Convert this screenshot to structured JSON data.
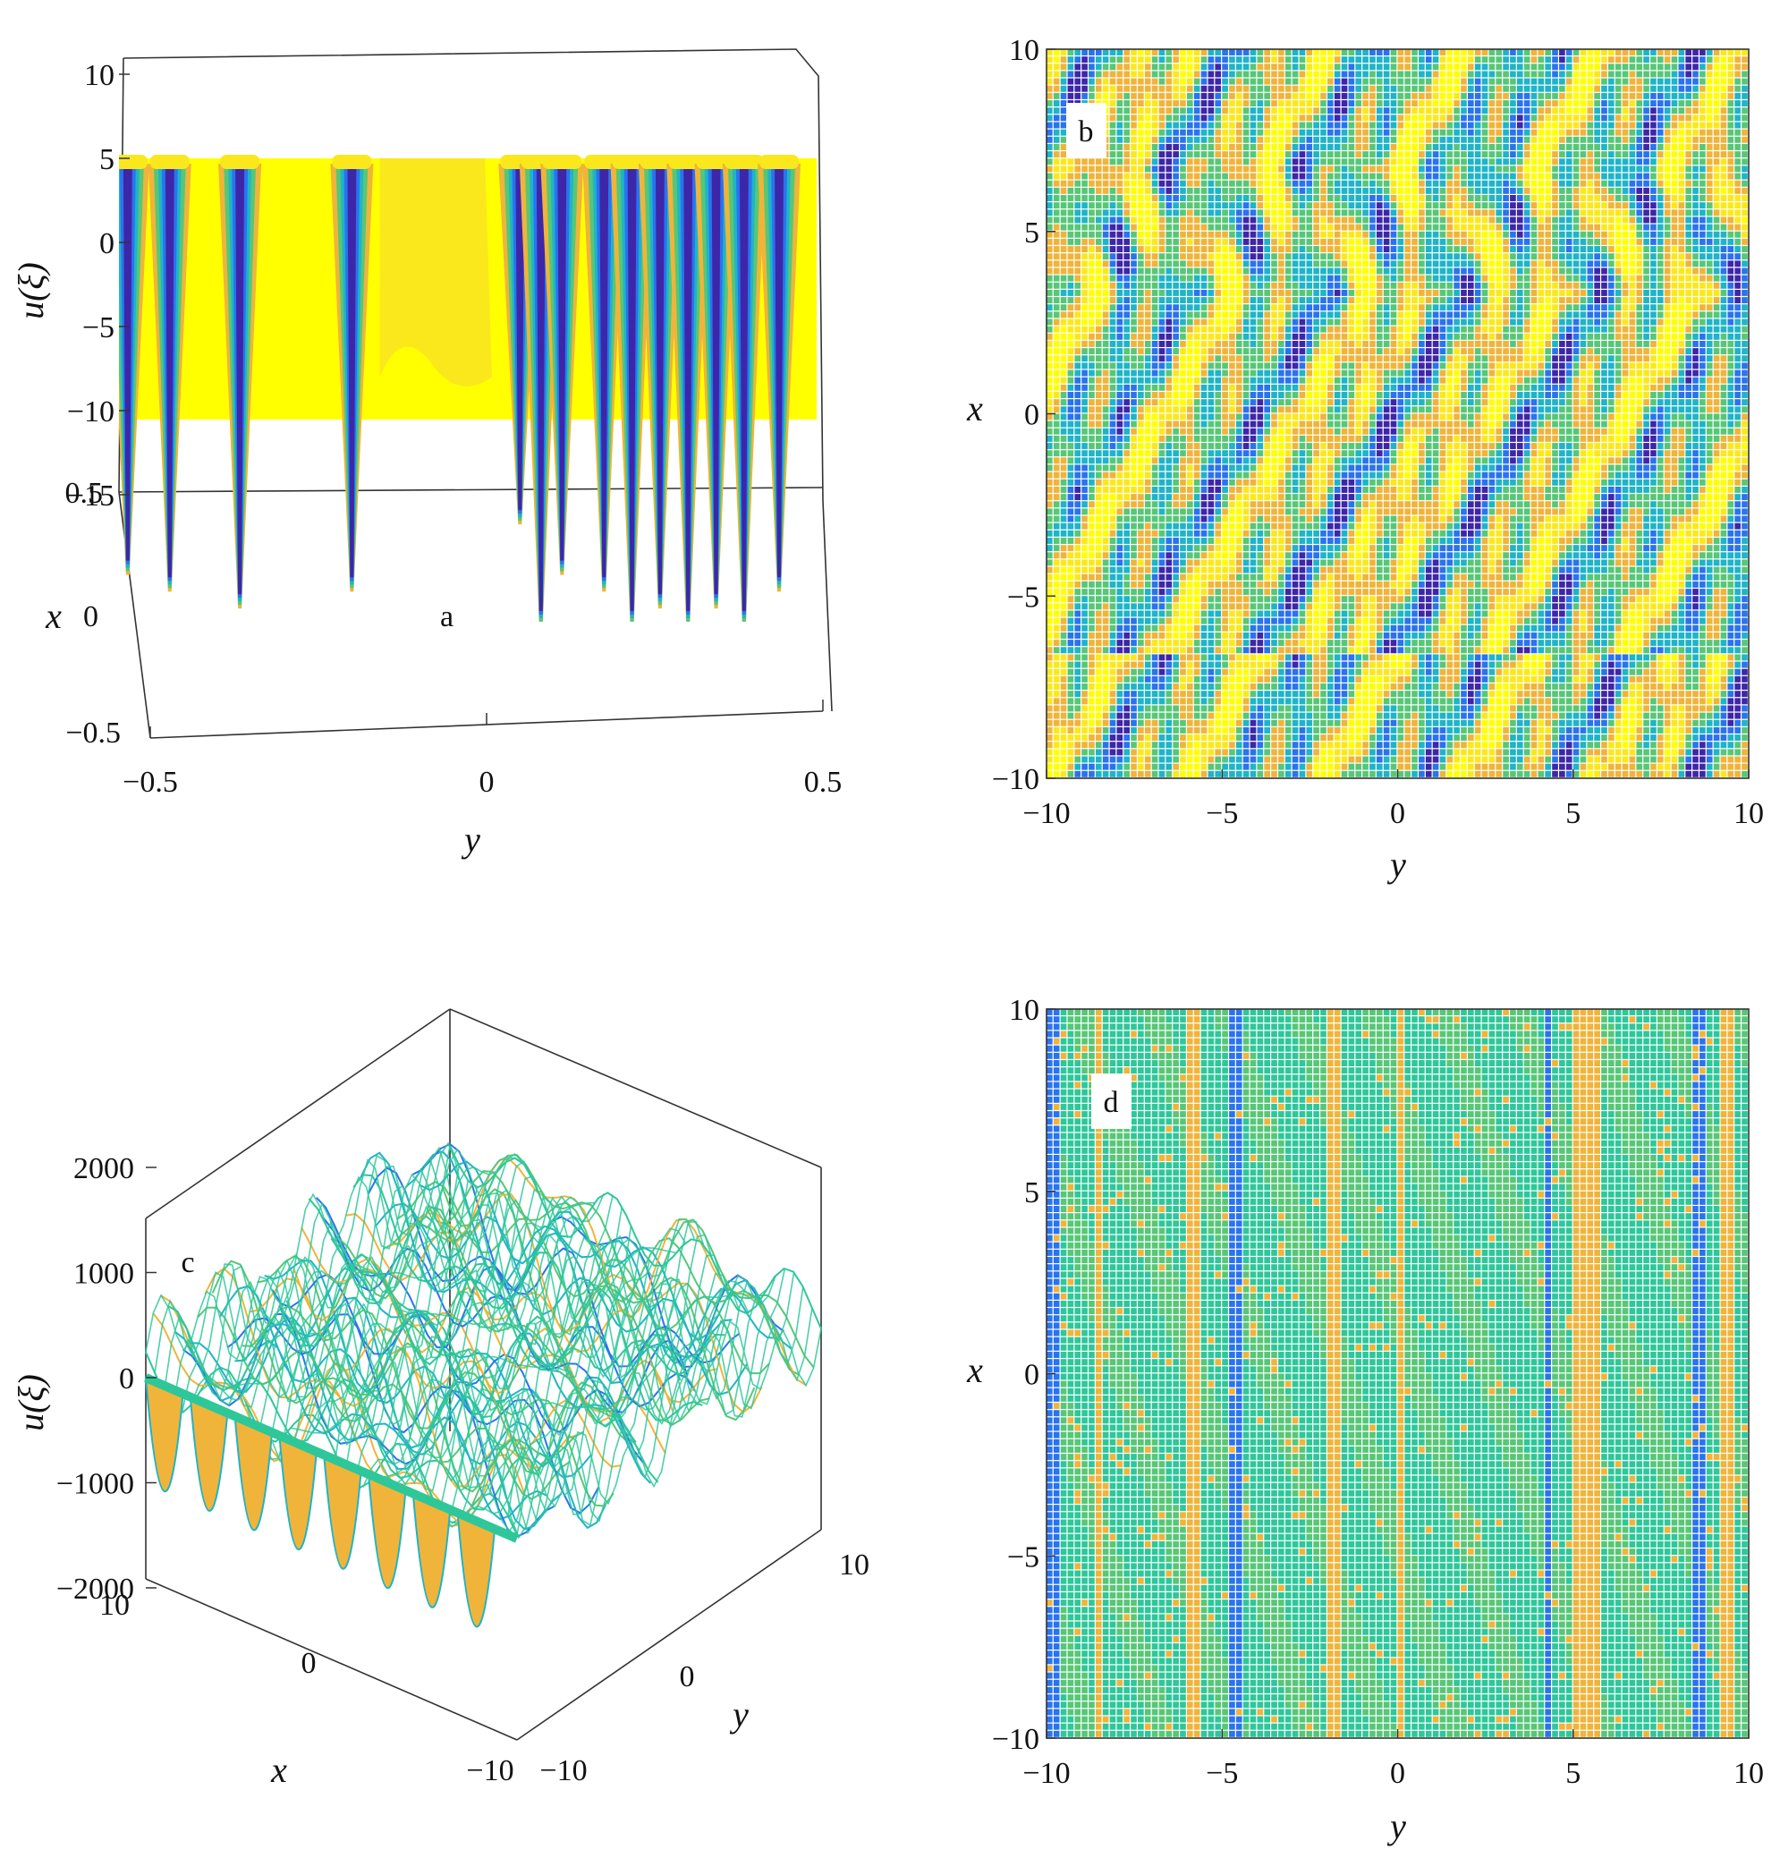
{
  "chart_data": [
    {
      "panel": "a",
      "type": "surface",
      "panel_label": "a",
      "xlabel": "y",
      "ylabel": "x",
      "zlabel": "u(ξ)",
      "xlim": [
        -0.5,
        0.5
      ],
      "ylim": [
        -0.5,
        0.5
      ],
      "zlim": [
        -15,
        10
      ],
      "xticks": [
        "−0.5",
        "0",
        "0.5"
      ],
      "yticks": [
        "0.5",
        "0",
        "−0.5"
      ],
      "zticks": [
        "10",
        "5",
        "0",
        "−5",
        "−10",
        "−15"
      ],
      "grid": false,
      "colormap": [
        "#3e26a8",
        "#2a73ef",
        "#1fb4c8",
        "#57c777",
        "#f0b43a",
        "#fae81c",
        "#ffff00"
      ],
      "wells": [
        {
          "y": -0.49,
          "u": -7
        },
        {
          "y": -0.43,
          "u": -8
        },
        {
          "y": -0.33,
          "u": -9
        },
        {
          "y": -0.17,
          "u": -8
        },
        {
          "y": 0.07,
          "u": -4
        },
        {
          "y": 0.1,
          "u": -10
        },
        {
          "y": 0.13,
          "u": -7
        },
        {
          "y": 0.19,
          "u": -8
        },
        {
          "y": 0.23,
          "u": -10
        },
        {
          "y": 0.27,
          "u": -9
        },
        {
          "y": 0.31,
          "u": -10
        },
        {
          "y": 0.35,
          "u": -9
        },
        {
          "y": 0.39,
          "u": -10
        },
        {
          "y": 0.44,
          "u": -8
        }
      ]
    },
    {
      "panel": "b",
      "type": "heatmap",
      "panel_label": "b",
      "xlabel": "y",
      "ylabel": "x",
      "xlim": [
        -10,
        10
      ],
      "ylim": [
        -10,
        10
      ],
      "xticks": [
        "−10",
        "−5",
        "0",
        "5",
        "10"
      ],
      "yticks": [
        "10",
        "5",
        "0",
        "−5",
        "−10"
      ],
      "colormap": [
        "#3e26a8",
        "#2a73ef",
        "#1fb4c8",
        "#57c777",
        "#f0b43a",
        "#fae81c",
        "#ffff00"
      ]
    },
    {
      "panel": "c",
      "type": "surface",
      "panel_label": "c",
      "xlabel": "x",
      "ylabel": "y",
      "zlabel": "u(ξ)",
      "xlim": [
        -10,
        10
      ],
      "ylim": [
        -10,
        10
      ],
      "zlim": [
        -2000,
        2000
      ],
      "xticks": [
        "10",
        "0",
        "−10"
      ],
      "yticks": [
        "−10",
        "0",
        "10"
      ],
      "zticks": [
        "2000",
        "1000",
        "0",
        "−1000",
        "−2000"
      ],
      "grid": false,
      "colormap": [
        "#3e26a8",
        "#2a73ef",
        "#1fb4c8",
        "#2ec79a",
        "#57c777",
        "#f0b43a",
        "#fae81c"
      ]
    },
    {
      "panel": "d",
      "type": "heatmap",
      "panel_label": "d",
      "xlabel": "y",
      "ylabel": "x",
      "xlim": [
        -10,
        10
      ],
      "ylim": [
        -10,
        10
      ],
      "xticks": [
        "−10",
        "−5",
        "0",
        "5",
        "10"
      ],
      "yticks": [
        "10",
        "5",
        "0",
        "−5",
        "−10"
      ],
      "colormap": [
        "#3e26a8",
        "#2a73ef",
        "#1fb4c8",
        "#2ec79a",
        "#57c777",
        "#f0b43a",
        "#fae81c"
      ]
    }
  ]
}
